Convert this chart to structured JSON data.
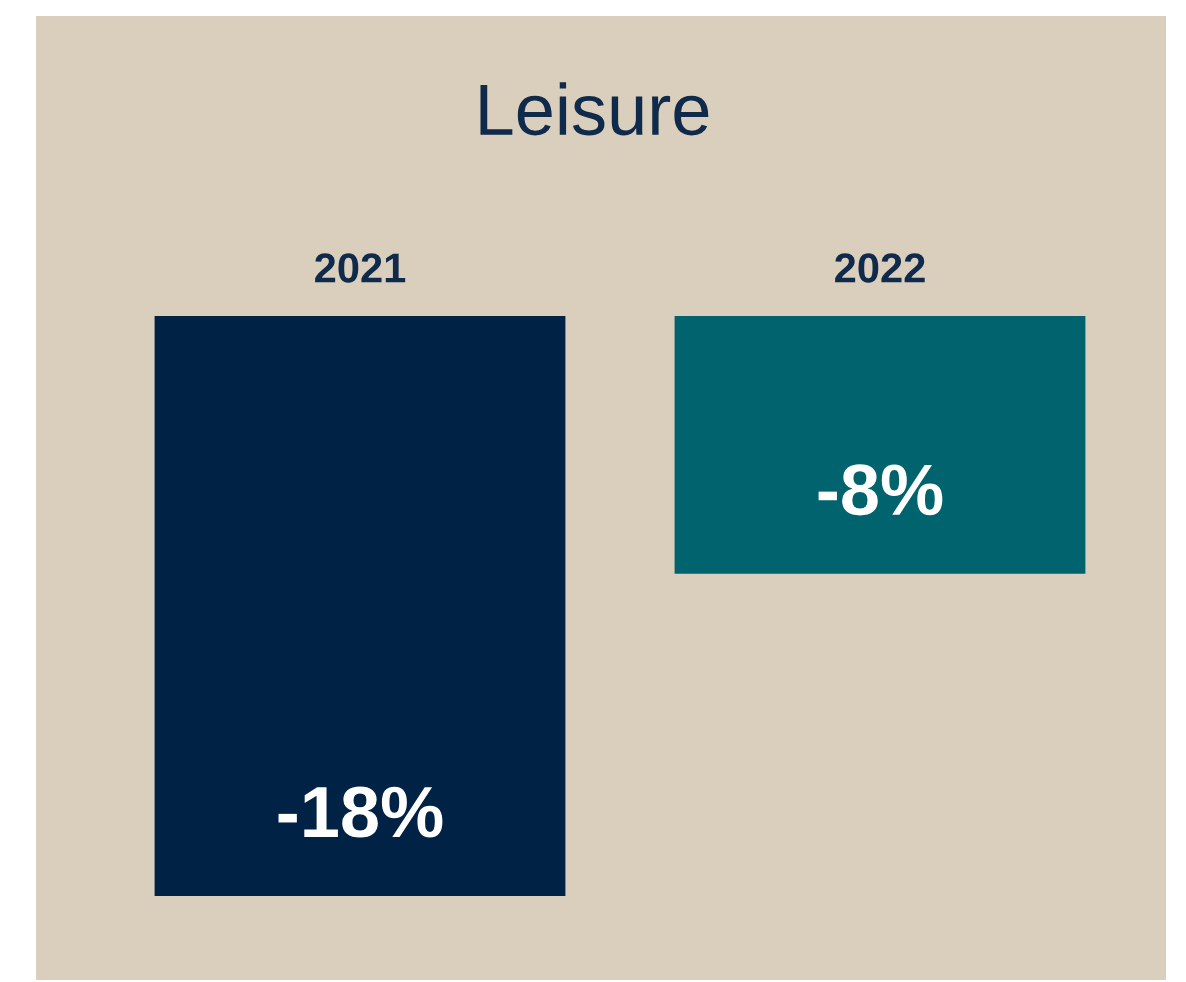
{
  "chart_data": {
    "type": "bar",
    "title": "Leisure",
    "categories": [
      "2021",
      "2022"
    ],
    "values": [
      -18,
      -8
    ],
    "colors": [
      "#002244",
      "#00636e"
    ],
    "value_labels": [
      "-18%",
      "-8%"
    ]
  }
}
